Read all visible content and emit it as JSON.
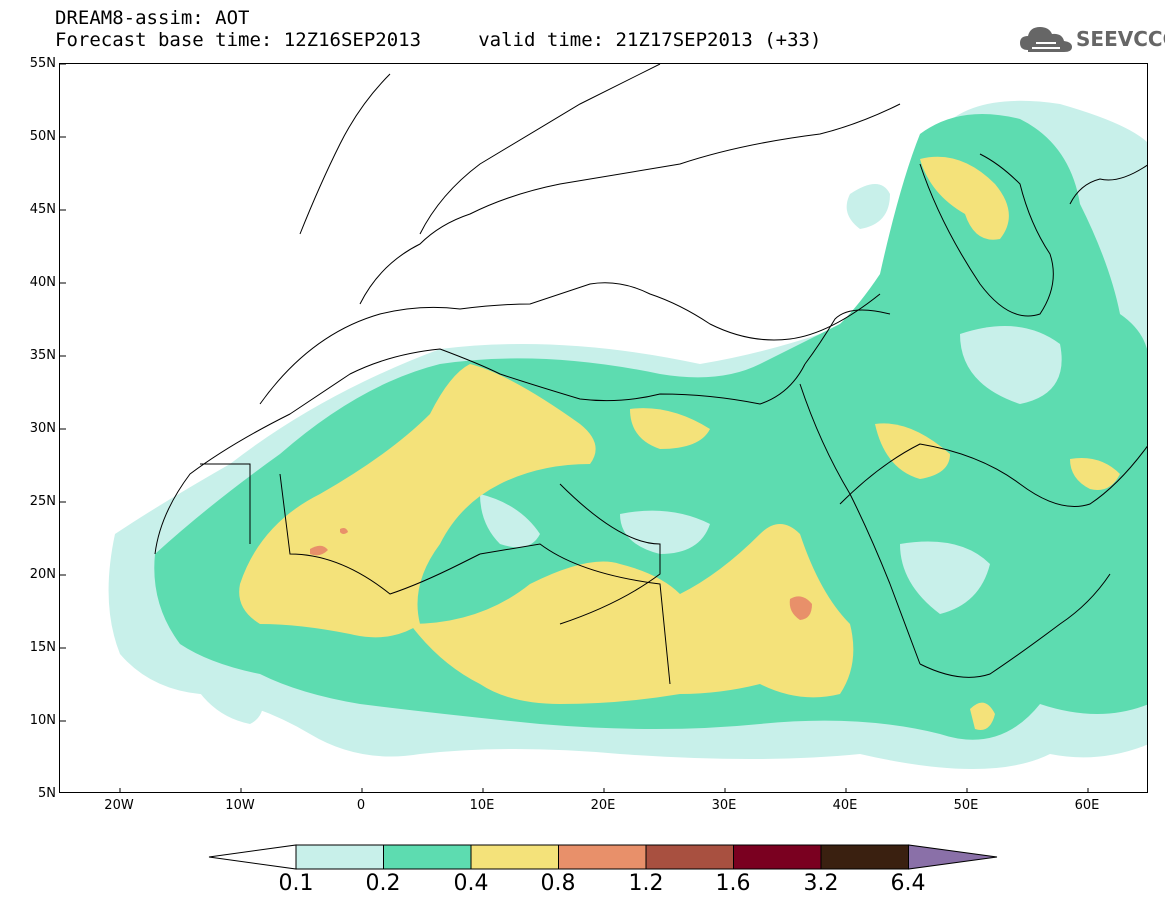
{
  "header": {
    "line1": "DREAM8-assim: AOT",
    "line2": "Forecast base time: 12Z16SEP2013     valid time: 21Z17SEP2013 (+33)"
  },
  "logo": {
    "text": "SEEVCCC",
    "icon": "cloud-icon"
  },
  "map": {
    "lat_labels": [
      "55N",
      "50N",
      "45N",
      "40N",
      "35N",
      "30N",
      "25N",
      "20N",
      "15N",
      "10N",
      "5N"
    ],
    "lon_labels": [
      "20W",
      "10W",
      "0",
      "10E",
      "20E",
      "30E",
      "40E",
      "50E",
      "60E"
    ],
    "lon_range": [
      -25,
      65
    ],
    "lat_range": [
      5,
      55
    ]
  },
  "legend": {
    "levels": [
      "0.1",
      "0.2",
      "0.4",
      "0.8",
      "1.2",
      "1.6",
      "3.2",
      "6.4"
    ],
    "colors": [
      "#ffffff",
      "#c8f0ea",
      "#5ddcb0",
      "#f4e27a",
      "#e8906a",
      "#a85040",
      "#7a0020",
      "#3a2010",
      "#8a70a8"
    ]
  }
}
